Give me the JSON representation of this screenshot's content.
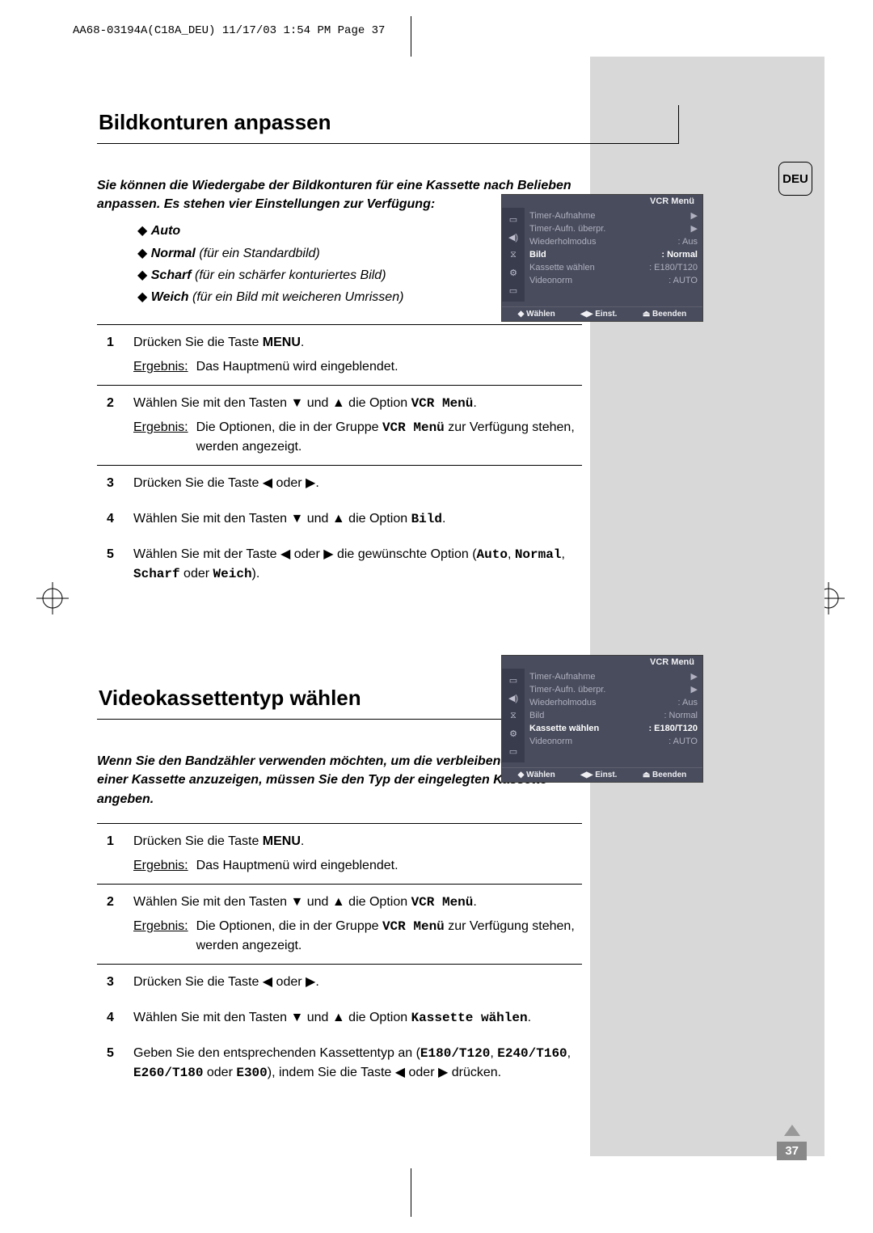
{
  "header_line": "AA68-03194A(C18A_DEU)  11/17/03  1:54 PM  Page 37",
  "language_badge": "DEU",
  "page_number": "37",
  "section1": {
    "title": "Bildkonturen anpassen",
    "intro": "Sie können die Wiedergabe der Bildkonturen für eine Kassette nach Belieben anpassen. Es stehen vier Einstellungen zur Verfügung:",
    "bullets": [
      {
        "b": "Auto",
        "rest": ""
      },
      {
        "b": "Normal",
        "rest": " (für ein Standardbild)"
      },
      {
        "b": "Scharf",
        "rest": " (für ein schärfer konturiertes Bild)"
      },
      {
        "b": "Weich",
        "rest": " (für ein Bild mit weicheren Umrissen)"
      }
    ],
    "steps": {
      "s1_text": "Drücken Sie die Taste ",
      "s1_bold": "MENU",
      "s1_suffix": ".",
      "s1_erg_label": "Ergebnis:",
      "s1_erg_text": "Das Hauptmenü wird eingeblendet.",
      "s2_text_a": "Wählen Sie mit den Tasten ▼ und ▲ die Option ",
      "s2_mono": "VCR Menü",
      "s2_text_b": ".",
      "s2_erg_label": "Ergebnis:",
      "s2_erg_text_a": "Die Optionen, die in der Gruppe ",
      "s2_erg_mono": "VCR Menü",
      "s2_erg_text_b": " zur Verfügung stehen, werden angezeigt.",
      "s3_text": "Drücken Sie die Taste ◀ oder ▶.",
      "s4_text_a": "Wählen Sie mit den Tasten ▼ und ▲ die Option ",
      "s4_mono": "Bild",
      "s4_text_b": ".",
      "s5_text_a": "Wählen Sie mit der Taste ◀ oder ▶ die gewünschte Option (",
      "s5_mono1": "Auto",
      "s5_comma1": ", ",
      "s5_mono2": "Normal",
      "s5_comma2": ", ",
      "s5_mono3": "Scharf",
      "s5_or": " oder ",
      "s5_mono4": "Weich",
      "s5_text_b": ")."
    }
  },
  "section2": {
    "title": "Videokassettentyp wählen",
    "intro": "Wenn Sie den Bandzähler verwenden möchten, um die verbleibende Zeit auf einer Kassette anzuzeigen, müssen Sie den Typ der eingelegten Kassette angeben.",
    "steps": {
      "s1_text": "Drücken Sie die Taste ",
      "s1_bold": "MENU",
      "s1_suffix": ".",
      "s1_erg_label": "Ergebnis:",
      "s1_erg_text": "Das Hauptmenü wird eingeblendet.",
      "s2_text_a": "Wählen Sie mit den Tasten ▼ und ▲ die Option ",
      "s2_mono": "VCR Menü",
      "s2_text_b": ".",
      "s2_erg_label": "Ergebnis:",
      "s2_erg_text_a": "Die Optionen, die in der Gruppe ",
      "s2_erg_mono": "VCR Menü",
      "s2_erg_text_b": " zur Verfügung stehen, werden angezeigt.",
      "s3_text": "Drücken Sie die Taste ◀ oder ▶.",
      "s4_text_a": "Wählen Sie mit den Tasten ▼ und ▲ die Option ",
      "s4_mono": "Kassette wählen",
      "s4_text_b": ".",
      "s5_text_a": "Geben Sie den entsprechenden Kassettentyp an (",
      "s5_mono1": "E180/T120",
      "s5_comma1": ", ",
      "s5_mono2": "E240/T160",
      "s5_comma2": ", ",
      "s5_mono3": "E260/T180",
      "s5_or": " oder ",
      "s5_mono4": "E300",
      "s5_text_b": "), indem Sie die Taste ◀ oder ▶ drücken."
    }
  },
  "osd1": {
    "title": "VCR Menü",
    "rows": [
      {
        "label": "Timer-Aufnahme",
        "value": "▶",
        "hl": false
      },
      {
        "label": "Timer-Aufn. überpr.",
        "value": "▶",
        "hl": false
      },
      {
        "label": "Wiederholmodus",
        "value": ": Aus",
        "hl": false
      },
      {
        "label": "Bild",
        "value": ": Normal",
        "hl": true
      },
      {
        "label": "Kassette wählen",
        "value": ": E180/T120",
        "hl": false
      },
      {
        "label": "Videonorm",
        "value": ": AUTO",
        "hl": false
      }
    ],
    "footer": {
      "a": "◆ Wählen",
      "b": "◀▶ Einst.",
      "c": "⏏ Beenden"
    }
  },
  "osd2": {
    "title": "VCR Menü",
    "rows": [
      {
        "label": "Timer-Aufnahme",
        "value": "▶",
        "hl": false
      },
      {
        "label": "Timer-Aufn. überpr.",
        "value": "▶",
        "hl": false
      },
      {
        "label": "Wiederholmodus",
        "value": ": Aus",
        "hl": false
      },
      {
        "label": "Bild",
        "value": ": Normal",
        "hl": false
      },
      {
        "label": "Kassette wählen",
        "value": ": E180/T120",
        "hl": true
      },
      {
        "label": "Videonorm",
        "value": ": AUTO",
        "hl": false
      }
    ],
    "footer": {
      "a": "◆ Wählen",
      "b": "◀▶ Einst.",
      "c": "⏏ Beenden"
    }
  }
}
